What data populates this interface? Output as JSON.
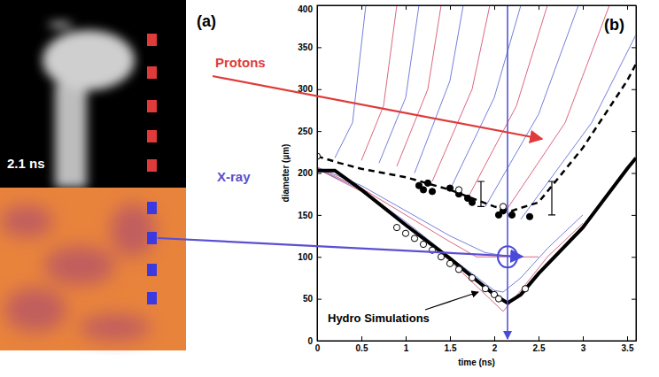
{
  "chart_data": {
    "type": "line",
    "panel_label": "(b)",
    "x_label": "time (ns)",
    "y_label": "diameter (µm)",
    "xlim": [
      0,
      3.6
    ],
    "ylim": [
      0,
      400
    ],
    "xticks": [
      0,
      0.5,
      1,
      1.5,
      2,
      2.5,
      3,
      3.5
    ],
    "yticks": [
      0,
      50,
      100,
      150,
      200,
      250,
      300,
      350,
      400
    ],
    "grid": false,
    "reference_x": 2.15,
    "highlight": {
      "x": 2.15,
      "y": 100
    },
    "annotations": [
      {
        "text": "Protons",
        "color": "#e03a3a"
      },
      {
        "text": "X-ray",
        "color": "#5a4fd0"
      },
      {
        "text": "Hydro Simulations",
        "color": "#000000"
      }
    ],
    "series": [
      {
        "type": "line",
        "color": "#5060d0",
        "line_style": "solid",
        "x": [
          0.2,
          0.4,
          0.55
        ],
        "values": [
          218,
          260,
          400
        ]
      },
      {
        "type": "line",
        "color": "#d04060",
        "line_style": "solid",
        "x": [
          0.5,
          0.75,
          0.9
        ],
        "values": [
          215,
          280,
          400
        ]
      },
      {
        "type": "line",
        "color": "#5060d0",
        "line_style": "solid",
        "x": [
          0.7,
          1.0,
          1.15
        ],
        "values": [
          212,
          290,
          400
        ]
      },
      {
        "type": "line",
        "color": "#d04060",
        "line_style": "solid",
        "x": [
          0.9,
          1.25,
          1.4
        ],
        "values": [
          208,
          300,
          400
        ]
      },
      {
        "type": "line",
        "color": "#5060d0",
        "line_style": "solid",
        "x": [
          1.1,
          1.5,
          1.65
        ],
        "values": [
          200,
          310,
          400
        ]
      },
      {
        "type": "line",
        "color": "#d04060",
        "line_style": "solid",
        "x": [
          1.3,
          1.75,
          1.95
        ],
        "values": [
          190,
          300,
          400
        ]
      },
      {
        "type": "line",
        "color": "#5060d0",
        "line_style": "solid",
        "x": [
          1.5,
          2.0,
          2.3
        ],
        "values": [
          180,
          290,
          400
        ]
      },
      {
        "type": "line",
        "color": "#d04060",
        "line_style": "solid",
        "x": [
          1.7,
          2.25,
          2.6
        ],
        "values": [
          170,
          280,
          400
        ]
      },
      {
        "type": "line",
        "color": "#5060d0",
        "line_style": "solid",
        "x": [
          1.9,
          2.5,
          2.95
        ],
        "values": [
          160,
          270,
          400
        ]
      },
      {
        "type": "line",
        "color": "#d04060",
        "line_style": "solid",
        "x": [
          2.1,
          2.8,
          3.3
        ],
        "values": [
          150,
          260,
          400
        ]
      },
      {
        "type": "line",
        "color": "#5060d0",
        "line_style": "solid",
        "x": [
          2.3,
          3.1,
          3.6
        ],
        "values": [
          145,
          260,
          365
        ]
      },
      {
        "type": "line",
        "color": "#d04060",
        "line_style": "solid",
        "x": [
          0,
          0.5,
          1,
          1.5,
          2,
          2.1,
          2.3,
          2.6,
          3
        ],
        "values": [
          205,
          178,
          140,
          95,
          45,
          35,
          60,
          100,
          140
        ]
      },
      {
        "type": "line",
        "color": "#5060d0",
        "line_style": "solid",
        "x": [
          0,
          0.5,
          1,
          1.5,
          2,
          2.1,
          2.3,
          2.6,
          3
        ],
        "values": [
          205,
          180,
          142,
          100,
          60,
          58,
          75,
          110,
          150
        ]
      },
      {
        "type": "line",
        "color": "#d04060",
        "line_style": "solid",
        "x": [
          0,
          0.5,
          1,
          1.5,
          1.8,
          2.1,
          2.5
        ],
        "values": [
          206,
          182,
          150,
          118,
          100,
          100,
          100
        ]
      },
      {
        "type": "line",
        "color": "#5060d0",
        "line_style": "solid",
        "x": [
          0,
          0.5,
          1,
          1.5,
          1.9,
          2.2
        ],
        "values": [
          207,
          185,
          155,
          125,
          105,
          100
        ]
      },
      {
        "type": "line",
        "color": "#000000",
        "line_style": "bold",
        "x": [
          0,
          0.2,
          0.5,
          1,
          1.5,
          1.8,
          2,
          2.15,
          2.3,
          2.5,
          3,
          3.5,
          3.6
        ],
        "values": [
          203,
          203,
          180,
          138,
          98,
          72,
          55,
          45,
          55,
          80,
          135,
          205,
          218
        ]
      },
      {
        "type": "line",
        "color": "#000000",
        "line_style": "dashed",
        "x": [
          0,
          0.25,
          0.5,
          1,
          1.5,
          2,
          2.2,
          2.5,
          3,
          3.5,
          3.6
        ],
        "values": [
          220,
          212,
          205,
          195,
          180,
          160,
          155,
          165,
          230,
          310,
          330
        ]
      },
      {
        "type": "errorbar",
        "color": "#000000",
        "x": [
          1.85,
          2.65
        ],
        "values": [
          175,
          170
        ],
        "errors": [
          15,
          20
        ]
      },
      {
        "type": "scatter",
        "color": "#000000",
        "marker": "filled",
        "x": [
          1.15,
          1.2,
          1.25,
          1.3,
          1.5,
          1.6,
          1.7,
          1.75,
          2.05,
          2.1,
          2.2,
          2.4
        ],
        "values": [
          185,
          180,
          188,
          178,
          182,
          175,
          170,
          165,
          150,
          155,
          150,
          148
        ]
      },
      {
        "type": "scatter",
        "color": "#000000",
        "marker": "open",
        "x": [
          0,
          1.6,
          2.1
        ],
        "values": [
          220,
          180,
          160
        ]
      },
      {
        "type": "scatter",
        "color": "#000000",
        "marker": "open",
        "x": [
          0.9,
          1.0,
          1.1,
          1.2,
          1.3,
          1.4,
          1.5,
          1.6,
          1.75,
          1.9,
          2.0,
          2.05,
          2.35
        ],
        "values": [
          135,
          128,
          122,
          115,
          108,
          100,
          92,
          85,
          75,
          62,
          55,
          50,
          62
        ]
      }
    ]
  },
  "panel_a": {
    "label": "(a)",
    "time_label": "2.1 ns"
  }
}
